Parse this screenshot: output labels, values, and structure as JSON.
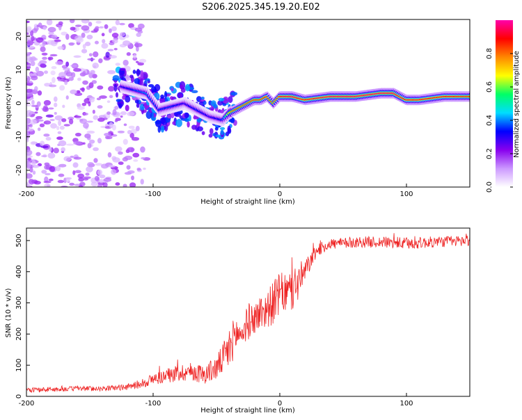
{
  "figure_title": "S206.2025.345.19.20.E02",
  "chart_data": [
    {
      "type": "heatmap",
      "xlabel": "Height of straight line (km)",
      "ylabel": "Frequency (Hz)",
      "xlim": [
        -200,
        150
      ],
      "ylim": [
        -25,
        25
      ],
      "xticks": [
        -200,
        -100,
        0,
        100
      ],
      "yticks": [
        -20,
        -10,
        0,
        10,
        20
      ],
      "ridge": {
        "x": [
          -125,
          -115,
          -105,
          -95,
          -85,
          -75,
          -65,
          -55,
          -45,
          -40,
          -35,
          -30,
          -20,
          -15,
          -10,
          -5,
          0,
          10,
          20,
          40,
          60,
          80,
          90,
          100,
          110,
          130,
          150
        ],
        "freq": [
          5,
          4,
          3,
          -2,
          -1,
          0,
          -2,
          -4,
          -5,
          -3,
          -2,
          -1,
          1,
          1,
          2,
          0,
          2,
          2,
          1,
          2,
          2,
          3,
          3,
          1,
          1,
          2,
          2
        ],
        "amp": [
          0.3,
          0.35,
          0.4,
          0.35,
          0.35,
          0.3,
          0.35,
          0.3,
          0.35,
          0.7,
          0.85,
          0.8,
          0.85,
          0.85,
          0.9,
          0.8,
          0.9,
          0.95,
          0.9,
          0.95,
          0.95,
          0.95,
          0.95,
          0.9,
          0.9,
          0.9,
          0.85
        ]
      },
      "colorbar": {
        "label": "Normalized spectral amplitude",
        "range": [
          0,
          1
        ],
        "ticks": [
          "0.0",
          "0.2",
          "0.4",
          "0.6",
          "0.8"
        ],
        "colors": [
          "#ffffff",
          "#cc99ff",
          "#8800ee",
          "#0000ff",
          "#00ddff",
          "#00ff66",
          "#ffff00",
          "#ff8800",
          "#ff0000",
          "#ff00aa"
        ]
      }
    },
    {
      "type": "line",
      "xlabel": "Height of straight line (km)",
      "ylabel": "SNR (10 * v/v)",
      "xlim": [
        -200,
        150
      ],
      "ylim": [
        0,
        540
      ],
      "xticks": [
        -200,
        -100,
        0,
        100
      ],
      "yticks": [
        0,
        100,
        200,
        300,
        400,
        500
      ],
      "color": "#ee2222",
      "series": [
        {
          "name": "SNR",
          "x": [
            -200,
            -180,
            -160,
            -140,
            -120,
            -110,
            -100,
            -90,
            -80,
            -70,
            -60,
            -50,
            -45,
            -40,
            -35,
            -30,
            -25,
            -20,
            -15,
            -10,
            -5,
            0,
            5,
            10,
            15,
            20,
            25,
            30,
            40,
            50,
            60,
            80,
            100,
            120,
            150
          ],
          "y": [
            20,
            22,
            25,
            25,
            30,
            40,
            55,
            65,
            75,
            80,
            70,
            90,
            120,
            150,
            200,
            200,
            240,
            250,
            270,
            280,
            300,
            330,
            330,
            340,
            370,
            400,
            440,
            470,
            490,
            490,
            495,
            495,
            490,
            495,
            500
          ],
          "noise": [
            8,
            8,
            8,
            8,
            10,
            15,
            20,
            22,
            28,
            30,
            30,
            40,
            50,
            70,
            60,
            40,
            60,
            50,
            60,
            60,
            70,
            70,
            60,
            80,
            60,
            40,
            25,
            20,
            18,
            18,
            18,
            18,
            20,
            18,
            18
          ]
        }
      ]
    }
  ]
}
